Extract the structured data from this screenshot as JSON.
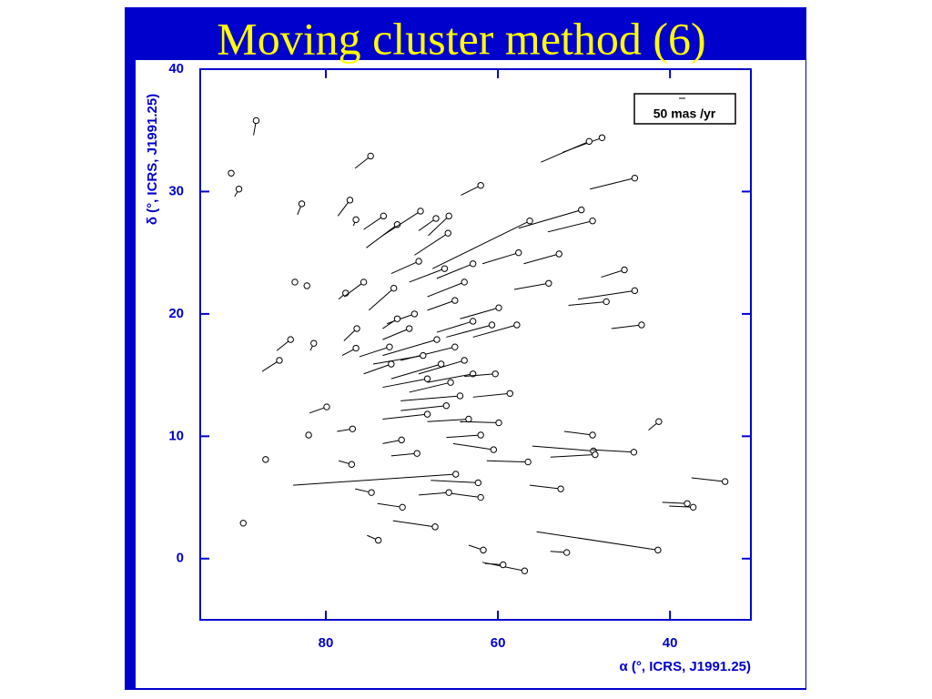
{
  "chart_data": {
    "type": "vector",
    "title": "Moving cluster method (6)",
    "x_label": "α (°, ICRS, J1991.25)",
    "y_label": "δ (°, ICRS, J1991.25)",
    "legend_label": "50 mas /yr",
    "color": "#000000",
    "axis_color": "#0000cc",
    "xlim": [
      94.6,
      30.6
    ],
    "ylim": [
      -5,
      40
    ],
    "xticks": [
      80,
      60,
      40
    ],
    "yticks": [
      0,
      10,
      20,
      30,
      40
    ],
    "x": [
      88.1,
      91.0,
      90.1,
      74.8,
      82.8,
      77.2,
      76.5,
      73.3,
      71.7,
      69.0,
      67.2,
      62.0,
      47.9,
      49.4,
      44.1,
      50.3,
      49.0,
      56.3,
      52.9,
      57.6,
      45.3,
      44.1,
      47.4,
      43.3,
      54.1,
      83.6,
      82.2,
      77.7,
      75.6,
      72.1,
      65.7,
      65.8,
      69.2,
      84.1,
      85.4,
      81.4,
      76.4,
      76.5,
      79.9,
      76.9,
      82.0,
      87.0,
      89.6,
      77.0,
      71.2,
      69.4,
      62.0,
      60.5,
      56.5,
      64.9,
      62.3,
      62.0,
      65.7,
      74.7,
      71.1,
      67.3,
      73.9,
      52.7,
      49.0,
      48.9,
      48.7,
      44.2,
      41.3,
      33.6,
      38.0,
      37.3,
      41.4,
      52.0,
      56.9,
      59.4,
      61.7,
      62.9,
      60.7,
      59.9,
      57.8,
      65.0,
      63.9,
      66.6,
      68.2,
      65.5,
      62.9,
      58.6,
      64.4,
      66.0,
      68.2,
      63.4,
      67.1,
      68.7,
      70.3,
      69.7,
      65.0,
      63.9,
      66.2,
      62.9,
      60.3,
      72.4,
      72.6,
      71.7,
      59.9
    ],
    "y": [
      35.8,
      31.5,
      30.2,
      32.9,
      29.0,
      29.3,
      27.7,
      28.0,
      27.3,
      28.4,
      27.8,
      30.5,
      34.4,
      34.1,
      31.1,
      28.5,
      27.6,
      27.6,
      24.9,
      25.0,
      23.6,
      21.9,
      21.0,
      19.1,
      22.5,
      22.6,
      22.3,
      21.7,
      22.6,
      22.1,
      28.0,
      26.6,
      24.3,
      17.9,
      16.2,
      17.6,
      18.8,
      17.2,
      12.4,
      10.6,
      10.1,
      8.1,
      2.9,
      7.7,
      9.7,
      8.6,
      10.1,
      8.9,
      7.9,
      6.9,
      6.2,
      5.0,
      5.4,
      5.4,
      4.2,
      2.6,
      1.5,
      5.7,
      10.1,
      8.8,
      8.5,
      8.7,
      11.2,
      6.3,
      4.5,
      4.2,
      0.7,
      0.5,
      -1.0,
      -0.5,
      0.7,
      19.4,
      19.1,
      20.5,
      19.1,
      17.3,
      16.2,
      15.9,
      14.7,
      14.4,
      15.1,
      13.5,
      13.3,
      12.5,
      11.8,
      11.4,
      17.9,
      16.6,
      18.8,
      20.0,
      21.1,
      22.6,
      23.7,
      24.1,
      15.1,
      15.9,
      17.3,
      19.6,
      11.1
    ],
    "x_end": [
      88.4,
      91.0,
      90.6,
      76.6,
      83.3,
      78.6,
      76.8,
      75.6,
      75.3,
      73.4,
      69.2,
      64.3,
      52.5,
      55.0,
      49.3,
      57.6,
      54.2,
      67.6,
      57.0,
      61.8,
      48.0,
      50.7,
      51.8,
      46.8,
      58.1,
      83.6,
      82.2,
      78.5,
      77.9,
      75.0,
      68.1,
      69.7,
      72.4,
      85.7,
      87.4,
      81.8,
      77.9,
      78.1,
      81.9,
      78.7,
      82.0,
      87.0,
      89.6,
      78.5,
      73.4,
      72.4,
      66.0,
      65.2,
      61.3,
      83.8,
      67.8,
      66.2,
      69.2,
      76.6,
      74.0,
      72.2,
      75.2,
      56.3,
      52.3,
      56.0,
      53.9,
      49.1,
      42.5,
      37.5,
      40.9,
      40.1,
      55.5,
      53.9,
      61.8,
      61.5,
      63.4,
      67.1,
      66.0,
      64.4,
      62.9,
      71.3,
      69.2,
      72.4,
      73.4,
      70.3,
      68.2,
      62.9,
      71.3,
      71.3,
      73.4,
      68.2,
      73.4,
      74.5,
      73.4,
      72.9,
      68.2,
      68.2,
      70.3,
      67.1,
      63.9,
      75.6,
      76.1,
      73.4,
      64.4
    ],
    "y_end": [
      34.6,
      31.5,
      29.6,
      31.9,
      28.1,
      28.0,
      27.2,
      26.9,
      25.4,
      26.4,
      26.8,
      29.7,
      33.2,
      32.4,
      30.2,
      27.0,
      26.7,
      23.7,
      24.1,
      24.1,
      23.0,
      21.2,
      20.7,
      18.8,
      22.0,
      22.6,
      22.3,
      21.2,
      21.4,
      20.3,
      26.4,
      24.8,
      23.3,
      17.0,
      15.3,
      17.0,
      17.8,
      16.6,
      11.9,
      10.4,
      10.1,
      8.1,
      2.9,
      8.0,
      9.4,
      8.4,
      9.9,
      9.4,
      8.0,
      6.0,
      6.4,
      5.4,
      5.2,
      5.7,
      4.5,
      3.1,
      1.9,
      6.0,
      10.4,
      9.2,
      8.3,
      8.9,
      10.5,
      6.6,
      4.6,
      4.3,
      2.2,
      0.6,
      -0.3,
      -0.4,
      1.1,
      18.5,
      18.1,
      19.6,
      18.1,
      16.2,
      15.1,
      14.7,
      14.0,
      13.6,
      14.4,
      13.2,
      12.9,
      12.1,
      11.4,
      11.2,
      16.6,
      15.9,
      17.9,
      19.2,
      20.3,
      21.4,
      22.6,
      22.9,
      14.9,
      15.1,
      16.5,
      18.8,
      11.2
    ]
  }
}
